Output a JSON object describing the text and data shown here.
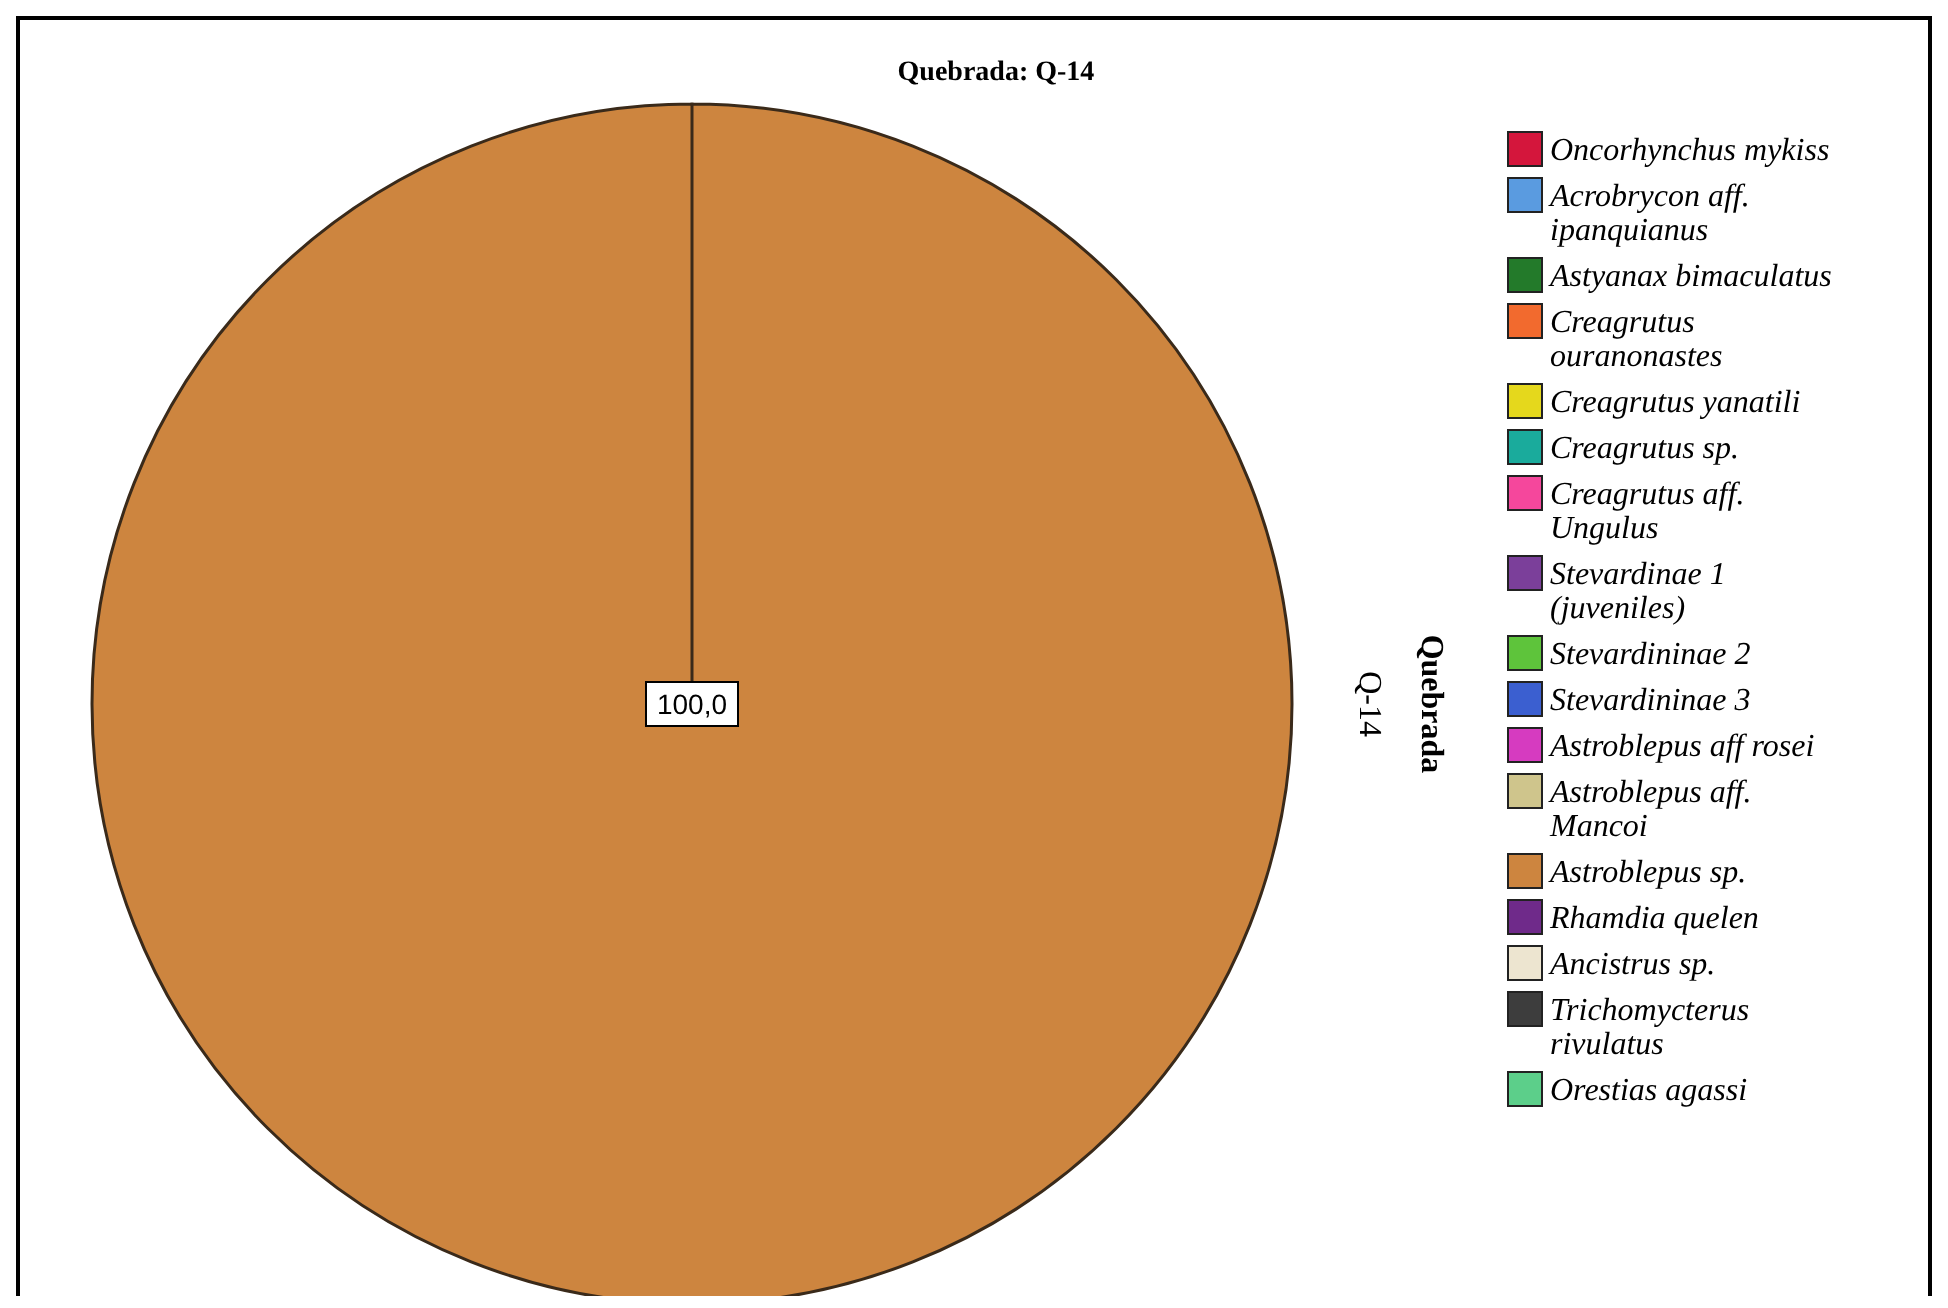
{
  "chart_data": {
    "type": "pie",
    "title": "Quebrada: Q-14",
    "categories": [
      "Oncorhynchus mykiss",
      "Acrobrycon aff. ipanquianus",
      "Astyanax bimaculatus",
      "Creagrutus ouranonastes",
      "Creagrutus yanatili",
      "Creagrutus sp.",
      "Creagrutus aff. Ungulus",
      "Stevardinae 1 (juveniles)",
      "Stevardininae 2",
      "Stevardininae 3",
      "Astroblepus aff rosei",
      "Astroblepus aff. Mancoi",
      "Astroblepus sp.",
      "Rhamdia quelen",
      "Ancistrus sp.",
      "Trichomycterus rivulatus",
      "Orestias agassi"
    ],
    "values": [
      0,
      0,
      0,
      0,
      0,
      0,
      0,
      0,
      0,
      0,
      0,
      0,
      100,
      0,
      0,
      0,
      0
    ],
    "value_labels": [
      null,
      null,
      null,
      null,
      null,
      null,
      null,
      null,
      null,
      null,
      null,
      null,
      "100,0",
      null,
      null,
      null,
      null
    ],
    "colors": [
      "#d4163c",
      "#5a9be0",
      "#237a2a",
      "#f26a2e",
      "#e5d81c",
      "#1aab9c",
      "#f5479c",
      "#7b3f9a",
      "#5ec43b",
      "#3b5fd0",
      "#d63bc0",
      "#cfc58c",
      "#cd853f",
      "#6f2a8a",
      "#ede5d0",
      "#3d3d3d",
      "#5ccf8a"
    ],
    "annotations": [
      "Quebrada",
      "Q-14"
    ],
    "legend": "right"
  }
}
